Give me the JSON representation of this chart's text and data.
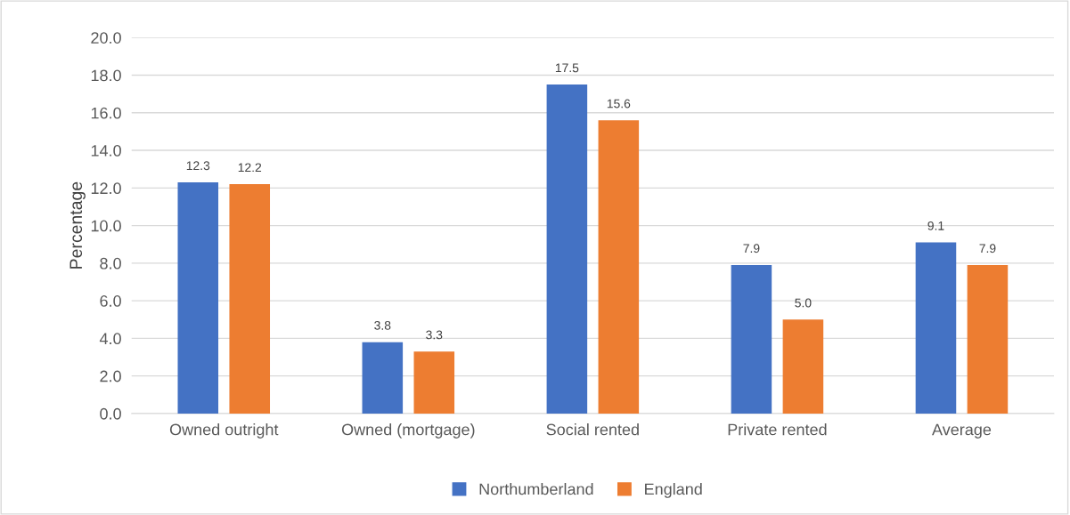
{
  "chart_data": {
    "type": "bar",
    "ylabel": "Percentage",
    "categories": [
      "Owned outright",
      "Owned (mortgage)",
      "Social rented",
      "Private rented",
      "Average"
    ],
    "series": [
      {
        "name": "Northumberland",
        "color": "#4472c4",
        "values": [
          12.3,
          3.8,
          17.5,
          7.9,
          9.1
        ],
        "value_labels": [
          "12.3",
          "3.8",
          "17.5",
          "7.9",
          "9.1"
        ]
      },
      {
        "name": "England",
        "color": "#ed7d31",
        "values": [
          12.2,
          3.3,
          15.6,
          5.0,
          7.9
        ],
        "value_labels": [
          "12.2",
          "3.3",
          "15.6",
          "5.0",
          "7.9"
        ]
      }
    ],
    "ylim": [
      0,
      20
    ],
    "yticks": [
      {
        "value": 0,
        "label": "0.0"
      },
      {
        "value": 2,
        "label": "2.0"
      },
      {
        "value": 4,
        "label": "4.0"
      },
      {
        "value": 6,
        "label": "6.0"
      },
      {
        "value": 8,
        "label": "8.0"
      },
      {
        "value": 10,
        "label": "10.0"
      },
      {
        "value": 12,
        "label": "12.0"
      },
      {
        "value": 14,
        "label": "14.0"
      },
      {
        "value": 16,
        "label": "16.0"
      },
      {
        "value": 18,
        "label": "18.0"
      },
      {
        "value": 20,
        "label": "20.0"
      }
    ],
    "grid": "y",
    "legend": "bottom"
  }
}
